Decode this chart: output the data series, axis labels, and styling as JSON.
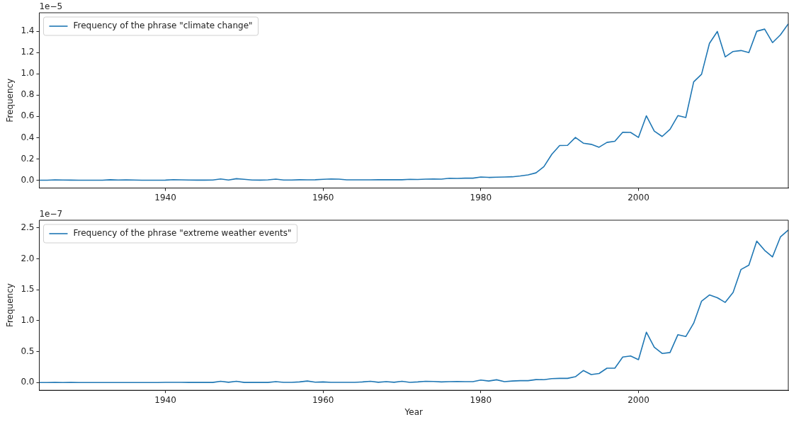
{
  "chart_data": [
    {
      "type": "line",
      "ylabel": "Frequency",
      "annotations": [
        "1e−5"
      ],
      "legend": "top left",
      "grid": false,
      "marker": "none",
      "line_style": "solid",
      "x": [
        1924,
        1925,
        1926,
        1927,
        1928,
        1929,
        1930,
        1931,
        1932,
        1933,
        1934,
        1935,
        1936,
        1937,
        1938,
        1939,
        1940,
        1941,
        1942,
        1943,
        1944,
        1945,
        1946,
        1947,
        1948,
        1949,
        1950,
        1951,
        1952,
        1953,
        1954,
        1955,
        1956,
        1957,
        1958,
        1959,
        1960,
        1961,
        1962,
        1963,
        1964,
        1965,
        1966,
        1967,
        1968,
        1969,
        1970,
        1971,
        1972,
        1973,
        1974,
        1975,
        1976,
        1977,
        1978,
        1979,
        1980,
        1981,
        1982,
        1983,
        1984,
        1985,
        1986,
        1987,
        1988,
        1989,
        1990,
        1991,
        1992,
        1993,
        1994,
        1995,
        1996,
        1997,
        1998,
        1999,
        2000,
        2001,
        2002,
        2003,
        2004,
        2005,
        2006,
        2007,
        2008,
        2009,
        2010,
        2011,
        2012,
        2013,
        2014,
        2015,
        2016,
        2017,
        2018,
        2019
      ],
      "xlim": [
        1924,
        2019
      ],
      "xticks": [
        1940,
        1960,
        1980,
        2000
      ],
      "ylim": [
        -0.074,
        1.574
      ],
      "yticks": [
        {
          "value": 0,
          "label": "0.0"
        },
        {
          "value": 0.2,
          "label": "0.2"
        },
        {
          "value": 0.4,
          "label": "0.4"
        },
        {
          "value": 0.6,
          "label": "0.6"
        },
        {
          "value": 0.8,
          "label": "0.8"
        },
        {
          "value": 1,
          "label": "1.0"
        },
        {
          "value": 1.2,
          "label": "1.2"
        },
        {
          "value": 1.4,
          "label": "1.4"
        }
      ],
      "series": [
        {
          "name": "Frequency of the phrase \"climate change\"",
          "color": "#1f77b4",
          "values": [
            0,
            0,
            0.003,
            0.002,
            0.001,
            0,
            0,
            0,
            0,
            0.004,
            0.002,
            0.003,
            0.002,
            0,
            0,
            0,
            0.001,
            0.005,
            0.003,
            0.002,
            0.001,
            0.001,
            0.002,
            0.012,
            0.002,
            0.014,
            0.008,
            0.002,
            0.001,
            0.003,
            0.01,
            0.002,
            0.002,
            0.004,
            0.003,
            0.004,
            0.008,
            0.012,
            0.01,
            0.003,
            0.003,
            0.003,
            0.003,
            0.004,
            0.004,
            0.004,
            0.004,
            0.008,
            0.007,
            0.01,
            0.011,
            0.01,
            0.018,
            0.017,
            0.019,
            0.019,
            0.03,
            0.026,
            0.028,
            0.03,
            0.032,
            0.04,
            0.05,
            0.069,
            0.127,
            0.243,
            0.326,
            0.328,
            0.402,
            0.348,
            0.337,
            0.31,
            0.355,
            0.366,
            0.451,
            0.449,
            0.402,
            0.605,
            0.462,
            0.411,
            0.478,
            0.607,
            0.589,
            0.924,
            0.996,
            1.286,
            1.398,
            1.159,
            1.21,
            1.219,
            1.199,
            1.4,
            1.42,
            1.293,
            1.366,
            1.47
          ]
        }
      ]
    },
    {
      "type": "line",
      "xlabel": "Year",
      "ylabel": "Frequency",
      "annotations": [
        "1e−7"
      ],
      "legend": "top left",
      "grid": false,
      "marker": "none",
      "line_style": "solid",
      "x": [
        1924,
        1925,
        1926,
        1927,
        1928,
        1929,
        1930,
        1931,
        1932,
        1933,
        1934,
        1935,
        1936,
        1937,
        1938,
        1939,
        1940,
        1941,
        1942,
        1943,
        1944,
        1945,
        1946,
        1947,
        1948,
        1949,
        1950,
        1951,
        1952,
        1953,
        1954,
        1955,
        1956,
        1957,
        1958,
        1959,
        1960,
        1961,
        1962,
        1963,
        1964,
        1965,
        1966,
        1967,
        1968,
        1969,
        1970,
        1971,
        1972,
        1973,
        1974,
        1975,
        1976,
        1977,
        1978,
        1979,
        1980,
        1981,
        1982,
        1983,
        1984,
        1985,
        1986,
        1987,
        1988,
        1989,
        1990,
        1991,
        1992,
        1993,
        1994,
        1995,
        1996,
        1997,
        1998,
        1999,
        2000,
        2001,
        2002,
        2003,
        2004,
        2005,
        2006,
        2007,
        2008,
        2009,
        2010,
        2011,
        2012,
        2013,
        2014,
        2015,
        2016,
        2017,
        2018,
        2019
      ],
      "xlim": [
        1924,
        2019
      ],
      "xticks": [
        1940,
        1960,
        1980,
        2000
      ],
      "ylim": [
        -0.125,
        2.625
      ],
      "yticks": [
        {
          "value": 0,
          "label": "0.0"
        },
        {
          "value": 0.5,
          "label": "0.5"
        },
        {
          "value": 1,
          "label": "1.0"
        },
        {
          "value": 1.5,
          "label": "1.5"
        },
        {
          "value": 2,
          "label": "2.0"
        },
        {
          "value": 2.5,
          "label": "2.5"
        }
      ],
      "series": [
        {
          "name": "Frequency of the phrase \"extreme weather events\"",
          "color": "#1f77b4",
          "values": [
            0,
            0,
            0.002,
            0,
            0.002,
            0,
            0,
            0,
            0,
            0,
            0,
            0,
            0,
            0,
            0,
            0,
            0.004,
            0.003,
            0.004,
            0.002,
            0.002,
            0.002,
            0.002,
            0.02,
            0.005,
            0.02,
            0.002,
            0.002,
            0.002,
            0.002,
            0.015,
            0.003,
            0.004,
            0.01,
            0.025,
            0.006,
            0.01,
            0.004,
            0.004,
            0.004,
            0.004,
            0.01,
            0.02,
            0.005,
            0.015,
            0.005,
            0.02,
            0.004,
            0.01,
            0.02,
            0.018,
            0.01,
            0.015,
            0.017,
            0.015,
            0.015,
            0.04,
            0.025,
            0.045,
            0.015,
            0.025,
            0.03,
            0.03,
            0.048,
            0.046,
            0.064,
            0.068,
            0.068,
            0.094,
            0.194,
            0.13,
            0.146,
            0.232,
            0.232,
            0.412,
            0.43,
            0.37,
            0.814,
            0.572,
            0.47,
            0.486,
            0.774,
            0.744,
            0.96,
            1.316,
            1.416,
            1.372,
            1.296,
            1.458,
            1.828,
            1.898,
            2.286,
            2.138,
            2.032,
            2.354,
            2.466
          ]
        }
      ]
    }
  ]
}
